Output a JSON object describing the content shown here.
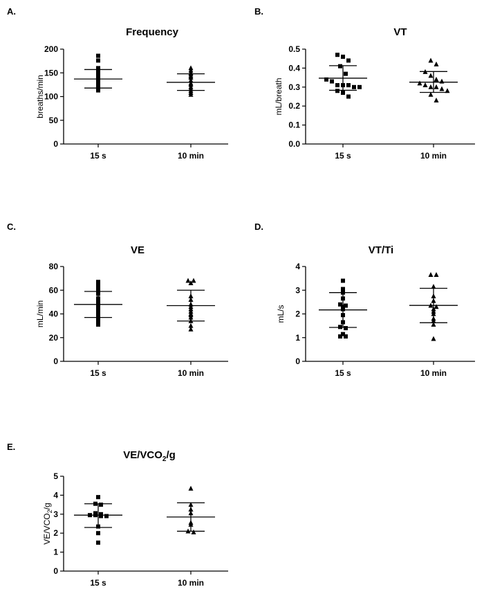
{
  "chart_data": [
    {
      "panel": "A.",
      "type": "scatter",
      "title": "Frequency",
      "ylabel": "breaths/min",
      "xlabel": "",
      "categories": [
        "15 s",
        "10 min"
      ],
      "ylim": [
        0,
        200
      ],
      "yticks": [
        0,
        50,
        100,
        150,
        200
      ],
      "markers": [
        "square",
        "triangle"
      ],
      "series": [
        {
          "name": "15 s",
          "mean": 137,
          "sd_low": 118,
          "sd_high": 157,
          "values": [
            186,
            176,
            160,
            153,
            150,
            147,
            142,
            139,
            138,
            135,
            133,
            128,
            122,
            118,
            113
          ]
        },
        {
          "name": "10 min",
          "mean": 130,
          "sd_low": 113,
          "sd_high": 148,
          "values": [
            160,
            155,
            150,
            147,
            143,
            140,
            134,
            128,
            125,
            120,
            116,
            112,
            108,
            104
          ]
        }
      ]
    },
    {
      "panel": "B.",
      "type": "scatter",
      "title": "VT",
      "ylabel": "mL/breath",
      "xlabel": "",
      "categories": [
        "15 s",
        "10 min"
      ],
      "ylim": [
        0,
        0.5
      ],
      "yticks": [
        0.0,
        0.1,
        0.2,
        0.3,
        0.4,
        0.5
      ],
      "tick_decimals": 1,
      "markers": [
        "square",
        "triangle"
      ],
      "series": [
        {
          "name": "15 s",
          "mean": 0.347,
          "sd_low": 0.283,
          "sd_high": 0.413,
          "values": [
            0.47,
            0.46,
            0.44,
            0.41,
            0.37,
            0.34,
            0.33,
            0.31,
            0.31,
            0.31,
            0.3,
            0.3,
            0.28,
            0.27,
            0.25
          ]
        },
        {
          "name": "10 min",
          "mean": 0.326,
          "sd_low": 0.272,
          "sd_high": 0.382,
          "values": [
            0.44,
            0.42,
            0.38,
            0.36,
            0.34,
            0.33,
            0.32,
            0.31,
            0.3,
            0.3,
            0.29,
            0.28,
            0.26,
            0.23
          ]
        }
      ]
    },
    {
      "panel": "C.",
      "type": "scatter",
      "title": "VE",
      "ylabel": "mL/min",
      "xlabel": "",
      "categories": [
        "15 s",
        "10 min"
      ],
      "ylim": [
        0,
        80
      ],
      "yticks": [
        0,
        20,
        40,
        60,
        80
      ],
      "markers": [
        "square",
        "triangle"
      ],
      "series": [
        {
          "name": "15 s",
          "mean": 48,
          "sd_low": 37,
          "sd_high": 59,
          "values": [
            67,
            64,
            61,
            57,
            53,
            50,
            47,
            45,
            43,
            42,
            40,
            38,
            36,
            34,
            31
          ]
        },
        {
          "name": "10 min",
          "mean": 47,
          "sd_low": 34,
          "sd_high": 60,
          "values": [
            68,
            68,
            66,
            55,
            52,
            48,
            46,
            44,
            42,
            40,
            39,
            37,
            34,
            30,
            27
          ]
        }
      ]
    },
    {
      "panel": "D.",
      "type": "scatter",
      "title": "VT/Ti",
      "ylabel": "mL/s",
      "xlabel": "",
      "categories": [
        "15 s",
        "10 min"
      ],
      "ylim": [
        0,
        4
      ],
      "yticks": [
        0,
        1,
        2,
        3,
        4
      ],
      "markers": [
        "square",
        "triangle"
      ],
      "series": [
        {
          "name": "15 s",
          "mean": 2.17,
          "sd_low": 1.43,
          "sd_high": 2.9,
          "values": [
            3.4,
            3.05,
            2.9,
            2.65,
            2.4,
            2.35,
            2.3,
            2.2,
            1.95,
            1.65,
            1.45,
            1.4,
            1.15,
            1.05,
            1.05
          ]
        },
        {
          "name": "10 min",
          "mean": 2.36,
          "sd_low": 1.63,
          "sd_high": 3.08,
          "values": [
            3.65,
            3.65,
            3.15,
            2.75,
            2.55,
            2.35,
            2.3,
            2.2,
            2.1,
            2.0,
            1.8,
            1.7,
            1.55,
            0.95
          ]
        }
      ]
    },
    {
      "panel": "E.",
      "type": "scatter",
      "title": "VE/VCO₂/g",
      "ylabel": "VE/VCO₂/g",
      "xlabel": "",
      "categories": [
        "15 s",
        "10 min"
      ],
      "ylim": [
        0,
        5
      ],
      "yticks": [
        0,
        1,
        2,
        3,
        4,
        5
      ],
      "markers": [
        "square",
        "triangle"
      ],
      "series": [
        {
          "name": "15 s",
          "mean": 2.95,
          "sd_low": 2.3,
          "sd_high": 3.55,
          "values": [
            3.9,
            3.55,
            3.5,
            3.05,
            3.0,
            2.95,
            2.95,
            2.9,
            2.9,
            2.35,
            2.0,
            1.5
          ]
        },
        {
          "name": "10 min",
          "mean": 2.85,
          "sd_low": 2.1,
          "sd_high": 3.6,
          "values": [
            4.35,
            3.5,
            3.25,
            3.05,
            2.55,
            2.45,
            2.1,
            2.05
          ]
        }
      ]
    }
  ]
}
